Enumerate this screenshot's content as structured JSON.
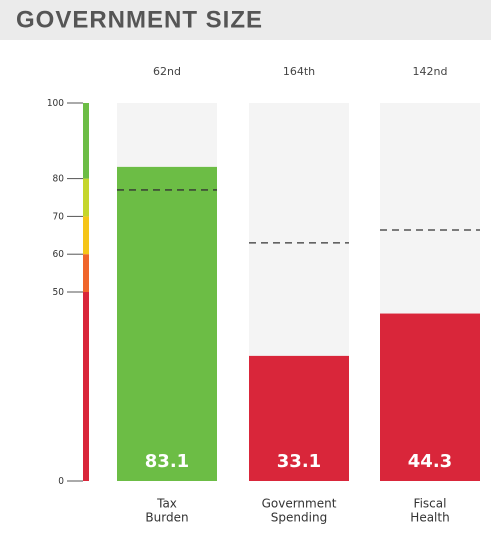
{
  "chart_data": {
    "type": "bar",
    "title": "GOVERNMENT SIZE",
    "categories": [
      [
        "Tax",
        "Burden"
      ],
      [
        "Government",
        "Spending"
      ],
      [
        "Fiscal",
        "Health"
      ]
    ],
    "ranks": [
      "62nd",
      "164th",
      "142nd"
    ],
    "values": [
      83.1,
      33.1,
      44.3
    ],
    "colors": [
      "#6cbd45",
      "#d9263a",
      "#d9263a"
    ],
    "reference_values": [
      77,
      63,
      66.4
    ],
    "ylim": [
      0,
      100
    ],
    "yticks": [
      0,
      50,
      60,
      70,
      80,
      100
    ],
    "color_scale": [
      {
        "from": 0,
        "to": 50,
        "color": "#d9263a"
      },
      {
        "from": 50,
        "to": 60,
        "color": "#f0652a"
      },
      {
        "from": 60,
        "to": 70,
        "color": "#f5c518"
      },
      {
        "from": 70,
        "to": 80,
        "color": "#c5d62c"
      },
      {
        "from": 80,
        "to": 100,
        "color": "#6cbd45"
      }
    ]
  }
}
